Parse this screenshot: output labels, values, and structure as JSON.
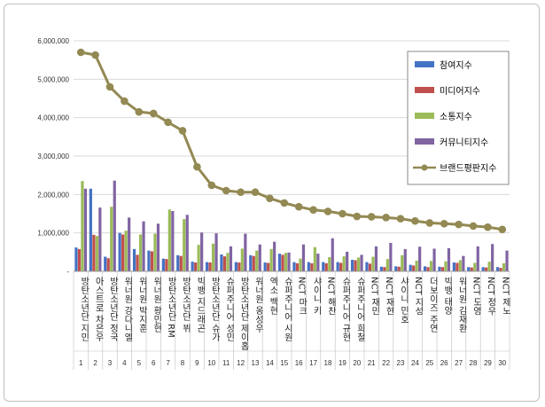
{
  "chart_data": {
    "type": "bar",
    "title": "",
    "xlabel": "",
    "ylabel": "",
    "ylim": [
      0,
      6000000
    ],
    "y_ticks": [
      0,
      1000000,
      2000000,
      3000000,
      4000000,
      5000000,
      6000000
    ],
    "y_tick_labels": [
      "-",
      "1,000,000",
      "2,000,000",
      "3,000,000",
      "4,000,000",
      "5,000,000",
      "6,000,000"
    ],
    "grid": true,
    "legend_position": "right",
    "ranks": [
      "1",
      "2",
      "3",
      "4",
      "5",
      "6",
      "7",
      "8",
      "9",
      "10",
      "11",
      "12",
      "13",
      "14",
      "15",
      "16",
      "17",
      "18",
      "19",
      "20",
      "21",
      "22",
      "23",
      "24",
      "25",
      "26",
      "27",
      "28",
      "29",
      "30"
    ],
    "categories": [
      "방탄소년단 지민",
      "아스트로 차은우",
      "방탄소년단 정국",
      "워너원 강다니엘",
      "워너원 박지훈",
      "워너원 황민현",
      "방탄소년단 RM",
      "방탄소년단 뷔",
      "빅뱅 지드래곤",
      "방탄소년단 슈가",
      "슈퍼주니어 성민",
      "방탄소년단 제이홉",
      "워너원 옹성우",
      "엑소 백현",
      "슈퍼주니어 시원",
      "NCT 마크",
      "샤이니 키",
      "NCT 해찬",
      "슈퍼주니어 규현",
      "슈퍼주니어 희철",
      "NCT 재민",
      "NCT 재현",
      "샤이니 민호",
      "NCT 지성",
      "더보이즈 주연",
      "빅뱅 태양",
      "워너원 김재환",
      "NCT 도영",
      "NCT 정우",
      "NCT 제노"
    ],
    "series": [
      {
        "name": "참여지수",
        "type": "bar",
        "color": "#4472c4",
        "values": [
          620000,
          2150000,
          380000,
          1000000,
          580000,
          540000,
          330000,
          420000,
          250000,
          240000,
          440000,
          240000,
          420000,
          230000,
          460000,
          240000,
          240000,
          240000,
          240000,
          300000,
          240000,
          120000,
          130000,
          170000,
          130000,
          120000,
          230000,
          110000,
          110000,
          110000
        ]
      },
      {
        "name": "미디어지수",
        "type": "bar",
        "color": "#c0504d",
        "values": [
          580000,
          950000,
          340000,
          960000,
          430000,
          520000,
          320000,
          400000,
          230000,
          230000,
          390000,
          230000,
          400000,
          220000,
          430000,
          210000,
          210000,
          210000,
          220000,
          290000,
          200000,
          110000,
          120000,
          150000,
          110000,
          110000,
          220000,
          100000,
          100000,
          90000
        ]
      },
      {
        "name": "소통지수",
        "type": "bar",
        "color": "#9bbb59",
        "values": [
          2350000,
          920000,
          1680000,
          1060000,
          960000,
          980000,
          1610000,
          1360000,
          690000,
          720000,
          480000,
          590000,
          540000,
          580000,
          480000,
          330000,
          630000,
          370000,
          390000,
          360000,
          380000,
          320000,
          420000,
          280000,
          270000,
          260000,
          290000,
          220000,
          250000,
          210000
        ]
      },
      {
        "name": "커뮤니티지수",
        "type": "bar",
        "color": "#8064a2",
        "values": [
          2150000,
          1660000,
          2360000,
          1400000,
          1300000,
          1240000,
          1570000,
          1470000,
          1010000,
          990000,
          650000,
          980000,
          700000,
          770000,
          490000,
          700000,
          460000,
          860000,
          510000,
          430000,
          650000,
          740000,
          580000,
          640000,
          590000,
          600000,
          400000,
          650000,
          710000,
          540000
        ]
      },
      {
        "name": "브랜드평판지수",
        "type": "line",
        "color": "#938953",
        "values": [
          5700000,
          5630000,
          4800000,
          4430000,
          4150000,
          4110000,
          3880000,
          3660000,
          2720000,
          2240000,
          2100000,
          2060000,
          2060000,
          1900000,
          1780000,
          1680000,
          1600000,
          1560000,
          1500000,
          1430000,
          1420000,
          1400000,
          1370000,
          1310000,
          1260000,
          1240000,
          1220000,
          1180000,
          1150000,
          1090000
        ]
      }
    ]
  }
}
